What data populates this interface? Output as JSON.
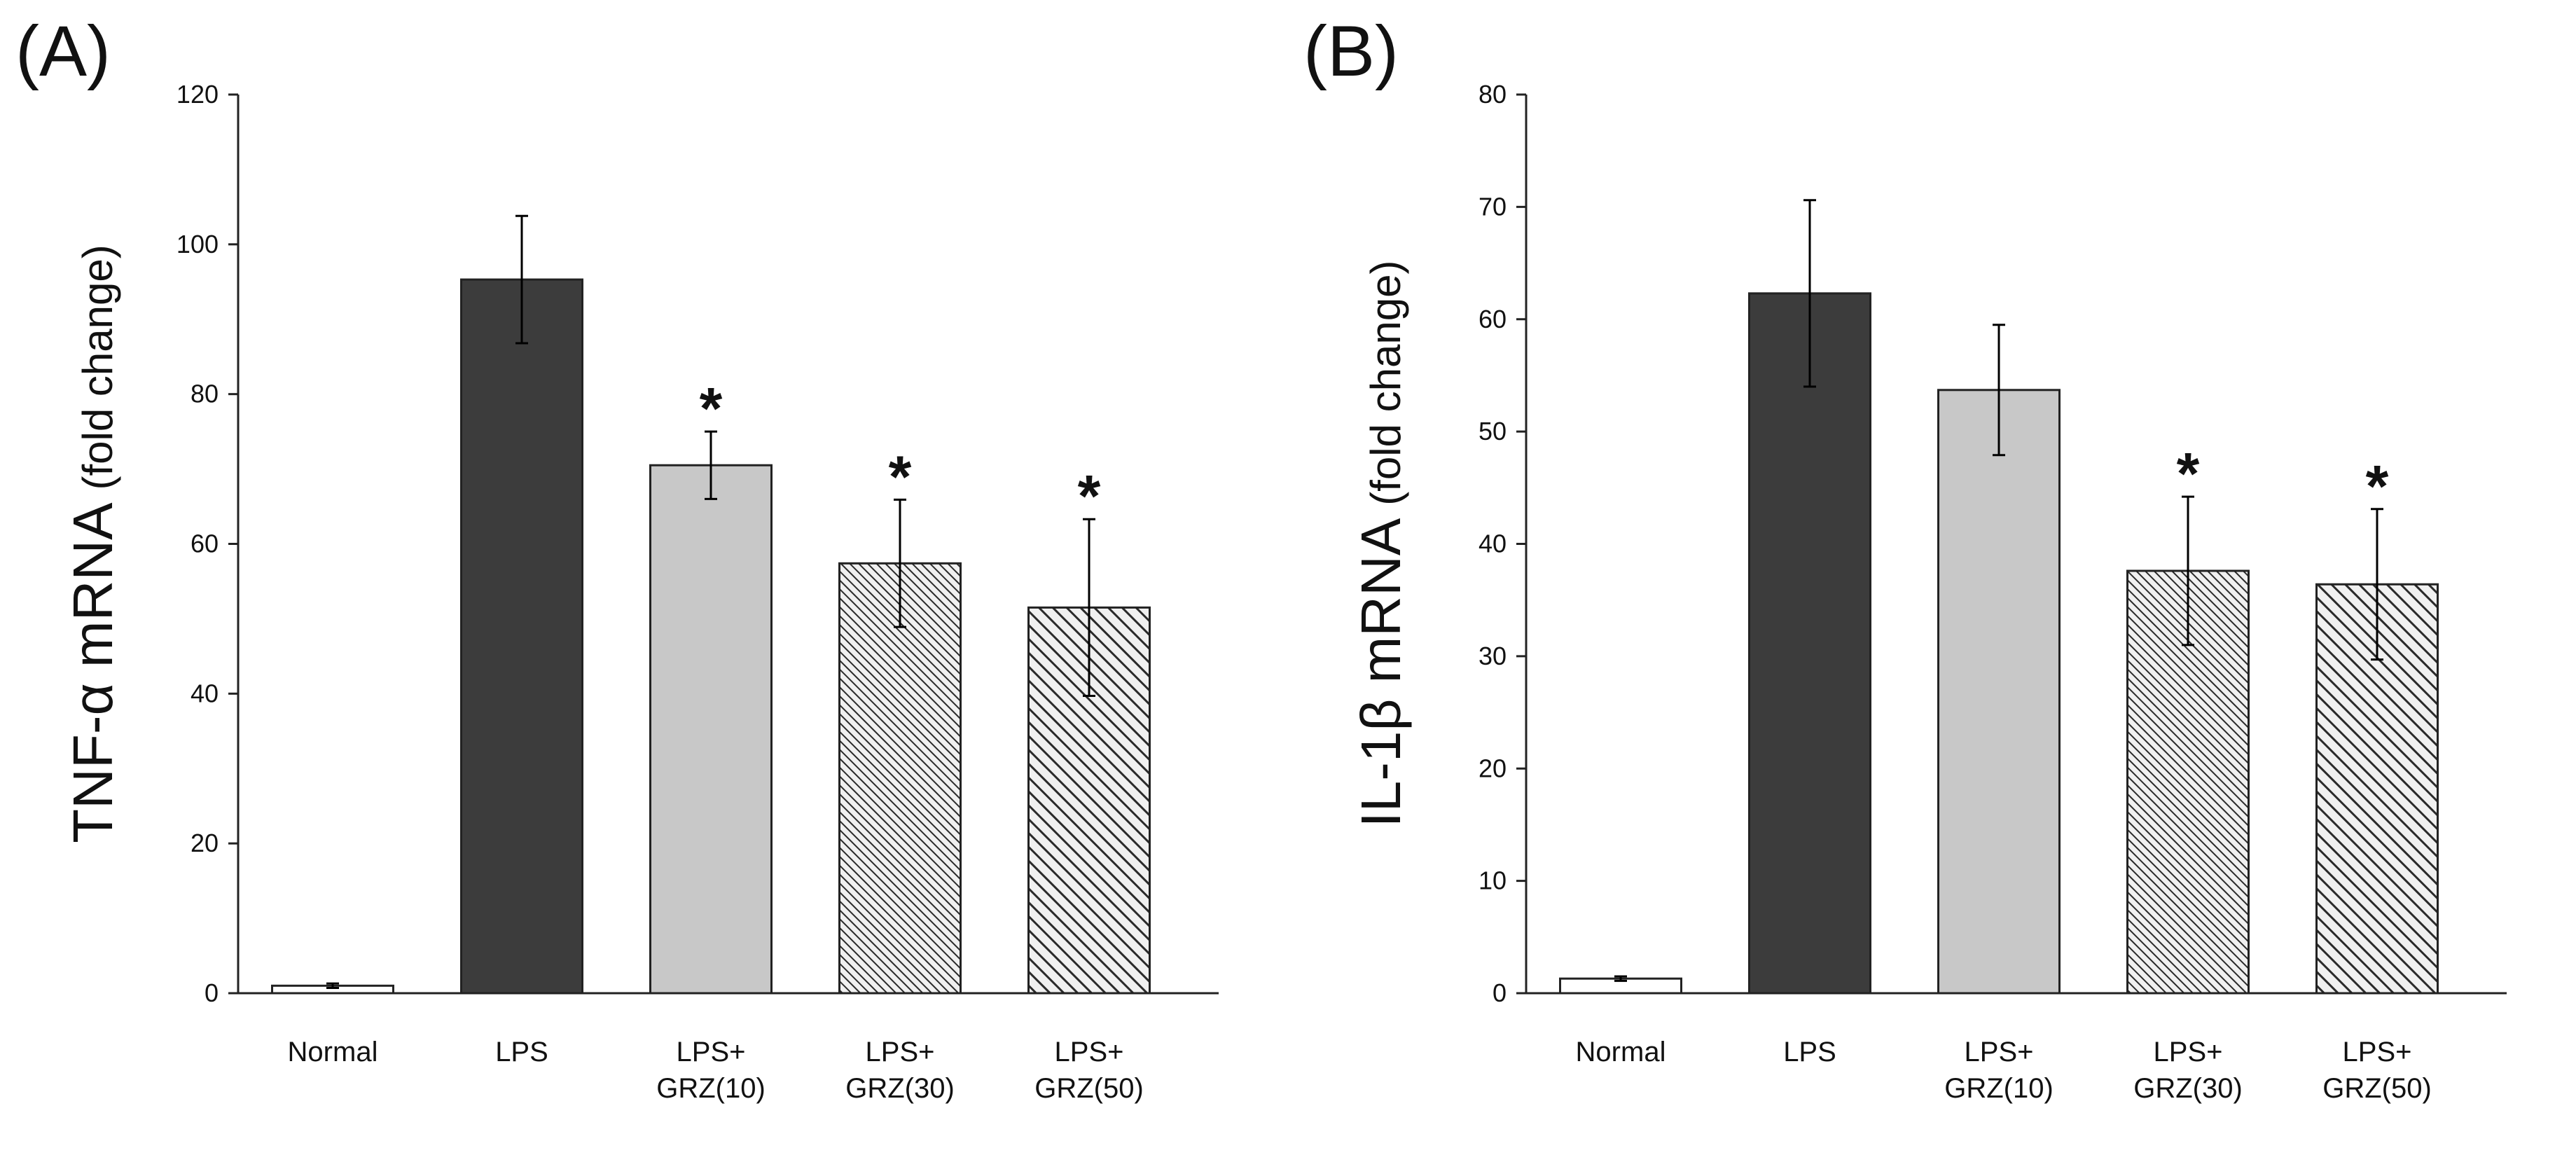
{
  "chart_data": [
    {
      "panel_label": "(A)",
      "type": "bar",
      "ylabel_main": "TNF-α mRNA",
      "ylabel_unit": "(fold change)",
      "categories": [
        [
          "Normal"
        ],
        [
          "LPS"
        ],
        [
          "LPS+",
          "GRZ(10)"
        ],
        [
          "LPS+",
          "GRZ(30)"
        ],
        [
          "LPS+",
          "GRZ(50)"
        ]
      ],
      "values": [
        1,
        95.3,
        70.5,
        57.4,
        51.5
      ],
      "errors": [
        0.3,
        8.5,
        4.5,
        8.5,
        11.8
      ],
      "significant": [
        false,
        false,
        true,
        true,
        true
      ],
      "fills": [
        "white",
        "dark",
        "light",
        "hatch-fine",
        "hatch-coarse"
      ],
      "ylim": [
        0,
        120
      ],
      "yticks": [
        0,
        20,
        40,
        60,
        80,
        100,
        120
      ],
      "marker": "*"
    },
    {
      "panel_label": "(B)",
      "type": "bar",
      "ylabel_main": "IL-1β mRNA",
      "ylabel_unit": "(fold change)",
      "categories": [
        [
          "Normal"
        ],
        [
          "LPS"
        ],
        [
          "LPS+",
          "GRZ(10)"
        ],
        [
          "LPS+",
          "GRZ(30)"
        ],
        [
          "LPS+",
          "GRZ(50)"
        ]
      ],
      "values": [
        1.3,
        62.3,
        53.7,
        37.6,
        36.4
      ],
      "errors": [
        0.2,
        8.3,
        5.8,
        6.6,
        6.7
      ],
      "significant": [
        false,
        false,
        false,
        true,
        true
      ],
      "fills": [
        "white",
        "dark",
        "light",
        "hatch-fine",
        "hatch-coarse"
      ],
      "ylim": [
        0,
        80
      ],
      "yticks": [
        0,
        10,
        20,
        30,
        40,
        50,
        60,
        70,
        80
      ],
      "marker": "*"
    }
  ],
  "colors": {
    "axis": "#222222",
    "dark_bar": "#3c3c3c",
    "light_bar": "#c8c8c8",
    "white_bar": "#ffffff",
    "hatch_bg": "#f0f0f0",
    "hatch_line": "#2a2a2a",
    "text": "#111111"
  }
}
